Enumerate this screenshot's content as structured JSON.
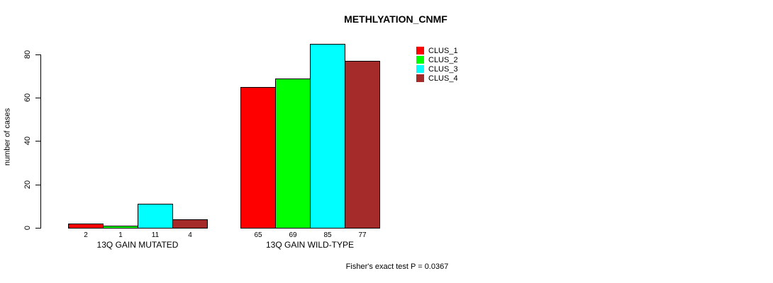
{
  "title": "METHLYATION_CNMF",
  "chart_data": {
    "type": "bar",
    "title": "METHLYATION_CNMF",
    "xlabel": "",
    "ylabel": "number of cases",
    "categories": [
      "13Q GAIN MUTATED",
      "13Q GAIN WILD-TYPE"
    ],
    "series": [
      {
        "name": "CLUS_1",
        "color": "#FF0000",
        "values": [
          2,
          65
        ]
      },
      {
        "name": "CLUS_2",
        "color": "#00FF00",
        "values": [
          1,
          69
        ]
      },
      {
        "name": "CLUS_3",
        "color": "#00FFFF",
        "values": [
          11,
          85
        ]
      },
      {
        "name": "CLUS_4",
        "color": "#A52A2A",
        "values": [
          4,
          77
        ]
      }
    ],
    "yticks": [
      0,
      20,
      40,
      60,
      80
    ],
    "ylim": [
      0,
      85
    ],
    "bar_value_labels_shown": true,
    "grid": false,
    "legend_position": "top-right",
    "annotation": "Fisher's exact test P = 0.0367"
  }
}
